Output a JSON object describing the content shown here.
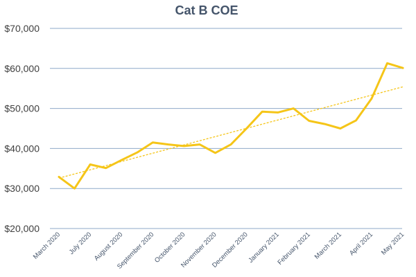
{
  "chart_data": {
    "type": "line",
    "title": "Cat B COE",
    "xlabel": "",
    "ylabel": "",
    "ylim": [
      20000,
      70000
    ],
    "yticks": [
      20000,
      30000,
      40000,
      50000,
      60000,
      70000
    ],
    "ytick_labels": [
      "$20,000",
      "$30,000",
      "$40,000",
      "$50,000",
      "$60,000",
      "$70,000"
    ],
    "x_tick_labels": [
      "March 2020",
      "July 2020",
      "August 2020",
      "September 2020",
      "October 2020",
      "November 2020",
      "December 2020",
      "January 2021",
      "February 2021",
      "March 2021",
      "April 2021",
      "May 2021"
    ],
    "x_tick_positions": [
      0,
      2,
      4,
      6,
      8,
      10,
      12,
      14,
      16,
      18,
      20,
      22
    ],
    "grid": true,
    "legend": "none",
    "series": [
      {
        "color": "#f5c518",
        "values": [
          32900,
          30000,
          36000,
          35100,
          37100,
          39000,
          41500,
          41000,
          40600,
          41000,
          38900,
          41000,
          45000,
          49200,
          49000,
          50000,
          46900,
          46100,
          45000,
          47000,
          52500,
          61300,
          60100
        ]
      }
    ],
    "trendline": {
      "style": "dashed",
      "color": "#f5c518",
      "start_value": 32600,
      "end_value": 55400
    }
  }
}
